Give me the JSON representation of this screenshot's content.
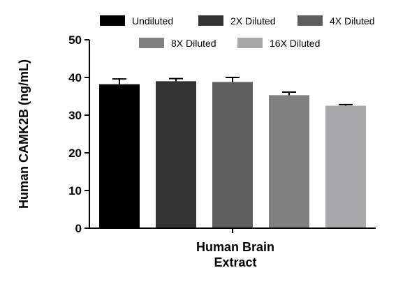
{
  "chart_data": {
    "type": "bar",
    "categories": [
      "Human Brain Extract"
    ],
    "xlabel_lines": [
      "Human Brain",
      "Extract"
    ],
    "ylabel": "Human CAMK2B (ng/mL)",
    "ylim": [
      0,
      50
    ],
    "yticks": [
      0,
      10,
      20,
      30,
      40,
      50
    ],
    "grid": false,
    "legend_position": "top",
    "series": [
      {
        "name": "Undiluted",
        "values": [
          38.2
        ],
        "error": [
          1.4
        ],
        "color": "#000000"
      },
      {
        "name": "2X Diluted",
        "values": [
          39.0
        ],
        "error": [
          0.7
        ],
        "color": "#333333"
      },
      {
        "name": "4X Diluted",
        "values": [
          38.8
        ],
        "error": [
          1.2
        ],
        "color": "#5e5e5e"
      },
      {
        "name": "8X Diluted",
        "values": [
          35.3
        ],
        "error": [
          0.8
        ],
        "color": "#808080"
      },
      {
        "name": "16X Diluted",
        "values": [
          32.5
        ],
        "error": [
          0.3
        ],
        "color": "#a8a8ab"
      }
    ]
  }
}
